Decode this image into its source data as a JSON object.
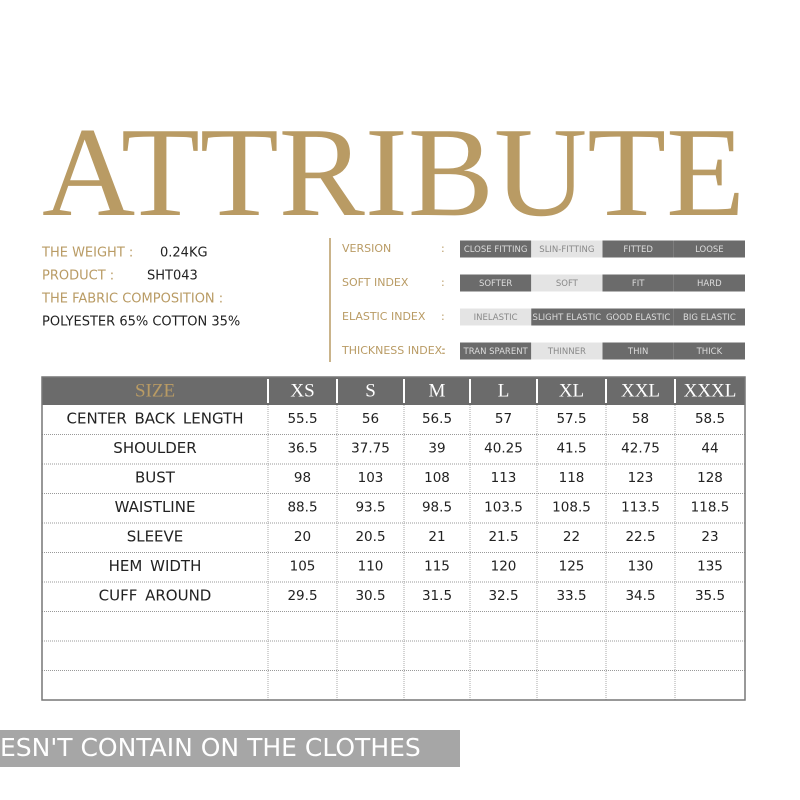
{
  "title": "ATTRIBUTE",
  "info": [
    {
      "label": "THE WEIGHT :",
      "value": "0.24KG"
    },
    {
      "label": "PRODUCT :",
      "value": "SHT043"
    },
    {
      "label": "THE FABRIC COMPOSITION :"
    },
    {
      "value": "POLYESTER 65% COTTON 35%"
    }
  ],
  "attributes": [
    {
      "label": "VERSION",
      "separator": ":",
      "options": [
        "CLOSE FITTING",
        "SLIN-FITTING",
        "FITTED",
        "LOOSE"
      ],
      "selected": 1
    },
    {
      "label": "SOFT INDEX",
      "separator": ":",
      "options": [
        "SOFTER",
        "SOFT",
        "FIT",
        "HARD"
      ],
      "selected": 1
    },
    {
      "label": "ELASTIC INDEX",
      "separator": ":",
      "options": [
        "INELASTIC",
        "SLIGHT ELASTIC",
        "GOOD ELASTIC",
        "BIG ELASTIC"
      ],
      "selected": 0
    },
    {
      "label": "THICKNESS INDEX:",
      "separator": ":",
      "options": [
        "TRAN SPARENT",
        "THINNER",
        "THIN",
        "THICK"
      ],
      "selected": 1
    }
  ],
  "table": {
    "header": [
      "SIZE",
      "XS",
      "S",
      "M",
      "L",
      "XL",
      "XXL",
      "XXXL"
    ],
    "rows": [
      [
        "CENTER BACK LENGTH",
        55.5,
        56,
        56.5,
        57,
        57.5,
        58,
        58.5
      ],
      [
        "SHOULDER",
        36.5,
        37.75,
        39,
        40.25,
        41.5,
        42.75,
        44
      ],
      [
        "BUST",
        98,
        103,
        108,
        113,
        118,
        123,
        128
      ],
      [
        "WAISTLINE",
        88.5,
        93.5,
        98.5,
        103.5,
        108.5,
        113.5,
        118.5
      ],
      [
        "SLEEVE",
        20,
        20.5,
        21,
        21.5,
        22,
        22.5,
        23
      ],
      [
        "HEM WIDTH",
        105,
        110,
        115,
        120,
        125,
        130,
        135
      ],
      [
        "CUFF AROUND",
        29.5,
        30.5,
        31.5,
        32.5,
        33.5,
        34.5,
        35.5
      ]
    ]
  },
  "banner": "ESN'T CONTAIN ON THE CLOTHES"
}
